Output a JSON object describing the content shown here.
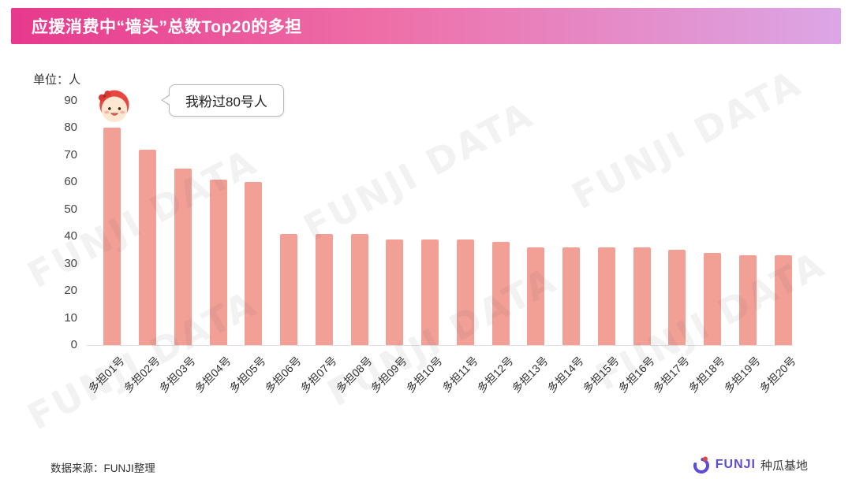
{
  "header": {
    "title": "应援消费中“墙头”总数Top20的多担"
  },
  "annotation": {
    "text": "我粉过80号人"
  },
  "watermark": {
    "text": "FUNJI DATA"
  },
  "footer": {
    "source": "数据来源：FUNJI整理",
    "logo_text": "FUNJI",
    "logo_suffix": "种瓜基地"
  },
  "colors": {
    "header_gradient_left": "#E7398D",
    "header_gradient_right": "#DCA6E6",
    "bar": "#F2A096",
    "logo_purple": "#5B4BD5"
  },
  "chart_data": {
    "type": "bar",
    "title": "应援消费中“墙头”总数Top20的多担",
    "unit_label": "单位：人",
    "categories": [
      "多担01号",
      "多担02号",
      "多担03号",
      "多担04号",
      "多担05号",
      "多担06号",
      "多担07号",
      "多担08号",
      "多担09号",
      "多担10号",
      "多担11号",
      "多担12号",
      "多担13号",
      "多担14号",
      "多担15号",
      "多担16号",
      "多担17号",
      "多担18号",
      "多担19号",
      "多担20号"
    ],
    "values": [
      80,
      72,
      65,
      61,
      60,
      41,
      41,
      41,
      39,
      39,
      39,
      38,
      36,
      36,
      36,
      36,
      35,
      34,
      33,
      33
    ],
    "xlabel": "",
    "ylabel": "人",
    "ylim": [
      0,
      90
    ],
    "yticks": [
      0,
      10,
      20,
      30,
      40,
      50,
      60,
      70,
      80,
      90
    ],
    "grid": false,
    "legend": false,
    "bar_color": "#F2A096",
    "annotation": "我粉过80号人"
  }
}
